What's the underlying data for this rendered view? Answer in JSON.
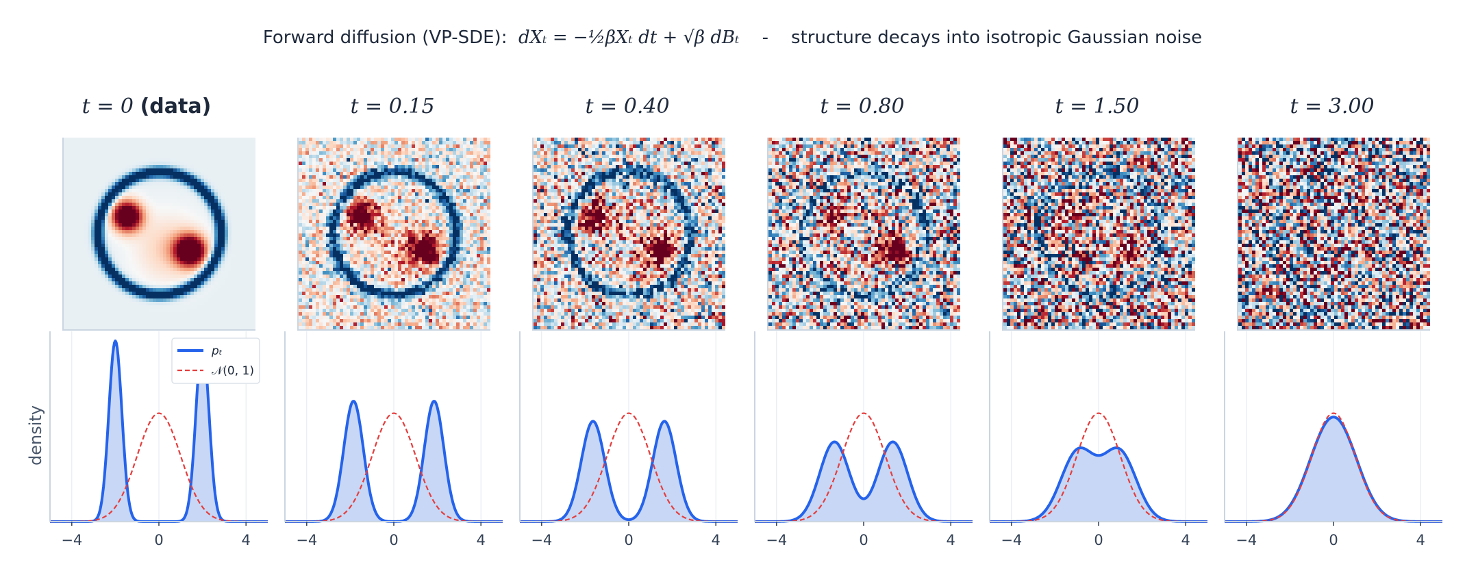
{
  "figure": {
    "suptitle_prefix": "Forward diffusion (VP-SDE):",
    "suptitle_equation": "dXₜ = −½βXₜ dt + √β dBₜ",
    "suptitle_sep": "-",
    "suptitle_suffix": "structure decays into isotropic Gaussian noise",
    "ylabel": "density"
  },
  "panels": [
    {
      "t_label": "t = 0",
      "t_suffix": "(data)"
    },
    {
      "t_label": "t = 0.15",
      "t_suffix": ""
    },
    {
      "t_label": "t = 0.40",
      "t_suffix": ""
    },
    {
      "t_label": "t = 0.80",
      "t_suffix": ""
    },
    {
      "t_label": "t = 1.50",
      "t_suffix": ""
    },
    {
      "t_label": "t = 3.00",
      "t_suffix": ""
    }
  ],
  "legend": {
    "pt": "pₜ",
    "normal": "𝒩(0, 1)",
    "position": "top-right"
  },
  "colors": {
    "density_line": "#2563eb",
    "density_fill": "#c7d7f5",
    "normal_line": "#e53e3e",
    "axis": "#cbd5e1",
    "grid": "#e2e8f0",
    "tick_text": "#334155",
    "image_colormap": "RdBu_r"
  },
  "chart_data": {
    "type": "line",
    "xlim": [
      -5,
      5
    ],
    "xticks": [
      -4,
      0,
      4
    ],
    "xtick_labels": [
      "−4",
      "0",
      "4"
    ],
    "ylim": [
      0,
      0.7
    ],
    "grid": "vertical",
    "shared_y": true,
    "reference": {
      "name": "𝒩(0, 1)",
      "mean": 0,
      "std": 1
    },
    "series": [
      {
        "t": 0,
        "name": "pₜ",
        "modes": [
          -2.0,
          2.0
        ],
        "std": 0.3
      },
      {
        "t": 0.15,
        "modes": [
          -1.85,
          1.85
        ],
        "std": 0.45
      },
      {
        "t": 0.4,
        "modes": [
          -1.64,
          1.64
        ],
        "std": 0.54
      },
      {
        "t": 0.8,
        "modes": [
          -1.34,
          1.34
        ],
        "std": 0.68
      },
      {
        "t": 1.5,
        "modes": [
          -0.95,
          0.95
        ],
        "std": 0.78
      },
      {
        "t": 3.0,
        "modes": [
          -0.45,
          0.45
        ],
        "std": 0.92
      }
    ]
  }
}
